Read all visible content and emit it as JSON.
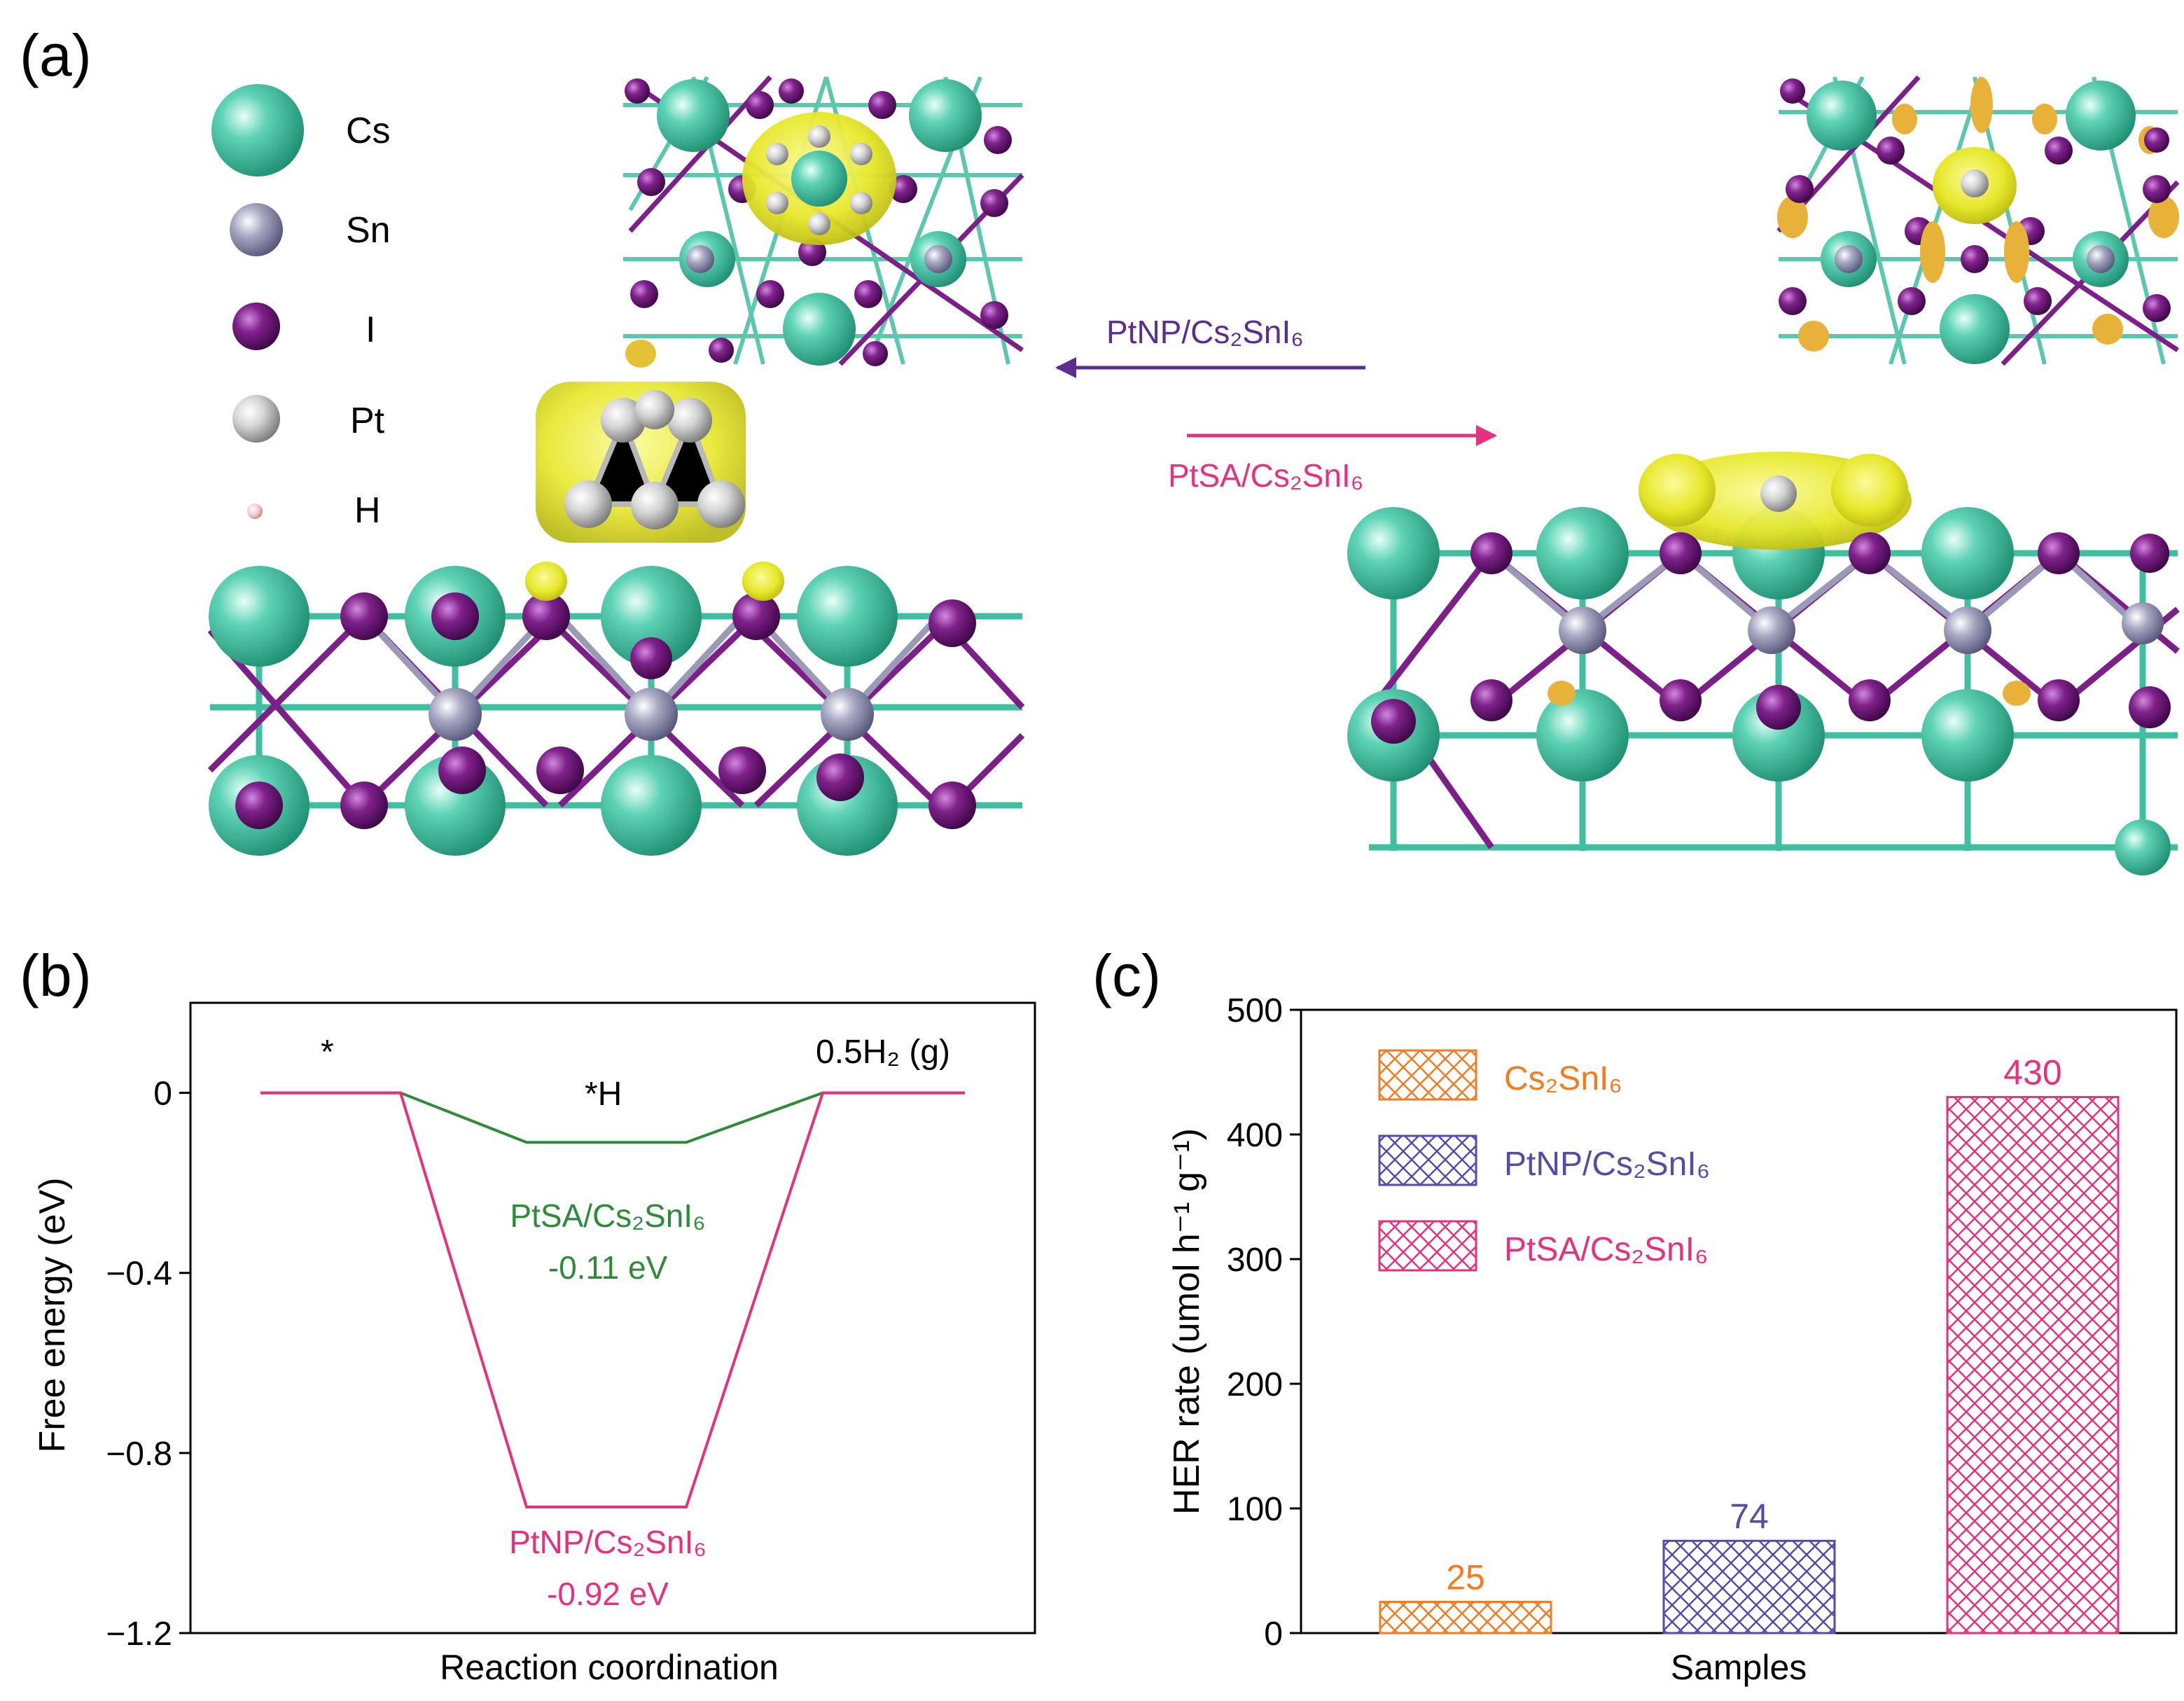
{
  "panel_labels": {
    "a": "(a)",
    "b": "(b)",
    "c": "(c)"
  },
  "colors": {
    "cs": "#3fbf9f",
    "sn": "#9a9ab8",
    "i": "#7d1f88",
    "pt": "#c8c8c8",
    "h": "#e7a9a6",
    "charge": "#e9e92a",
    "charge_dark": "#c79a2a",
    "green": "#2e8b3a",
    "pink": "#e6317e",
    "orange": "#f47b20",
    "purple": "#5a4aa8",
    "arrow_purple": "#5b2d90"
  },
  "legend_atoms": [
    {
      "label": "Cs",
      "icon": "cs-atom-icon"
    },
    {
      "label": "Sn",
      "icon": "sn-atom-icon"
    },
    {
      "label": "I",
      "icon": "i-atom-icon"
    },
    {
      "label": "Pt",
      "icon": "pt-atom-icon"
    },
    {
      "label": "H",
      "icon": "h-atom-icon"
    }
  ],
  "panel_a": {
    "arrow_left_label": "PtNP/Cs₂SnI₆",
    "arrow_right_label": "PtSA/Cs₂SnI₆"
  },
  "chart_data": [
    {
      "type": "line",
      "title": "",
      "xlabel": "Reaction coordination",
      "ylabel": "Free energy (eV)",
      "ylim": [
        -1.2,
        0.2
      ],
      "yticks": [
        0,
        -0.4,
        -0.8,
        -1.2
      ],
      "ytick_labels": [
        "0",
        "−0.4",
        "−0.8",
        "−1.2"
      ],
      "states": [
        "*",
        "*H",
        "0.5H₂ (g)"
      ],
      "series": [
        {
          "name": "PtSA/Cs₂SnI₆",
          "values": [
            0,
            -0.11,
            0
          ],
          "label_value": "-0.11 eV"
        },
        {
          "name": "PtNP/Cs₂SnI₆",
          "values": [
            0,
            -0.92,
            0
          ],
          "label_value": "-0.92 eV"
        }
      ]
    },
    {
      "type": "bar",
      "title": "",
      "xlabel": "Samples",
      "ylabel": "HER rate (umol h⁻¹ g⁻¹)",
      "ylim": [
        0,
        500
      ],
      "yticks": [
        0,
        100,
        200,
        300,
        400,
        500
      ],
      "categories": [
        "Cs₂SnI₆",
        "PtNP/Cs₂SnI₆",
        "PtSA/Cs₂SnI₆"
      ],
      "values": [
        25,
        74,
        430
      ],
      "value_labels": [
        "25",
        "74",
        "430"
      ],
      "legend_position": "top-left"
    }
  ]
}
